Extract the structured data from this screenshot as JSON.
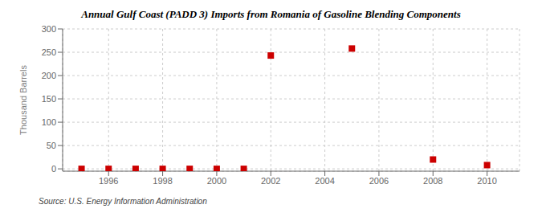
{
  "chart_data": {
    "type": "scatter",
    "title": "Annual Gulf Coast (PADD 3) Imports from Romania of Gasoline Blending Components",
    "ylabel": "Thousand Barrels",
    "annotation": "Source: U.S. Energy Information Administration",
    "x": [
      1995,
      1996,
      1997,
      1998,
      1999,
      2000,
      2001,
      2002,
      2005,
      2008,
      2010
    ],
    "values": [
      0,
      0,
      0,
      0,
      0,
      0,
      0,
      243,
      258,
      20,
      8
    ],
    "color": "#cc0000",
    "marker": "square",
    "xlim": [
      1994.3,
      2011.2
    ],
    "ylim": [
      -5,
      300
    ],
    "xticks": [
      1996,
      1998,
      2000,
      2002,
      2004,
      2006,
      2008,
      2010
    ],
    "yticks": [
      0,
      50,
      100,
      150,
      200,
      250,
      300
    ],
    "grid": true
  }
}
